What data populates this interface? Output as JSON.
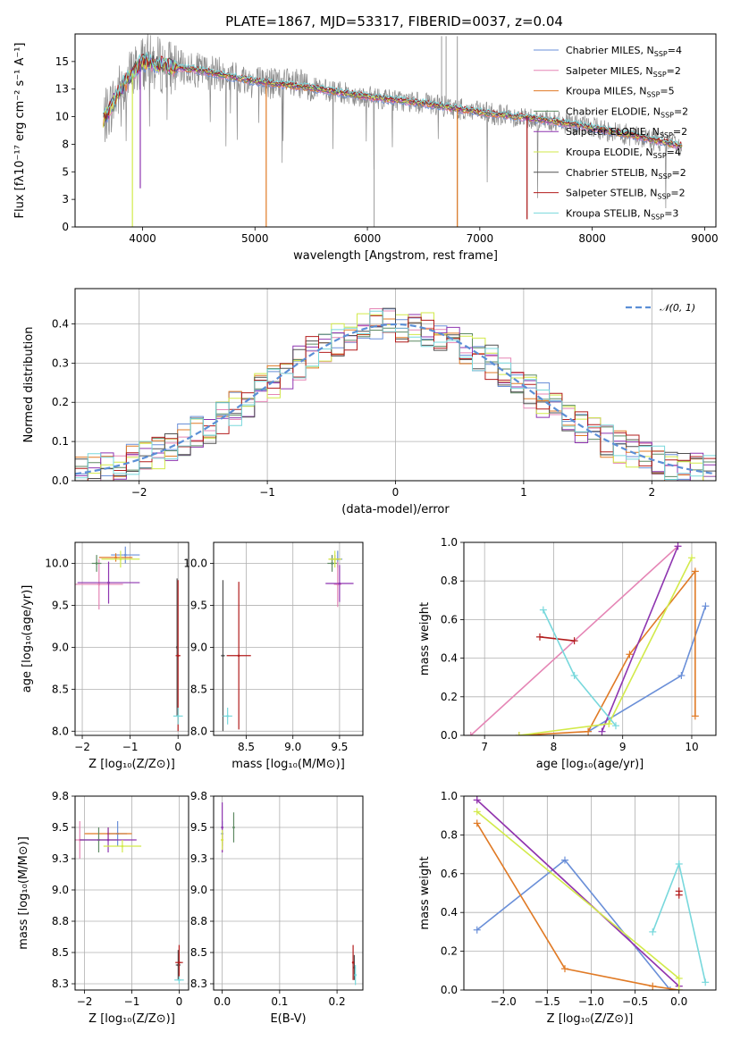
{
  "colors": {
    "Chabrier MILES": "#6a8fd8",
    "Salpeter MILES": "#e585b5",
    "Kroupa MILES": "#e07a25",
    "Chabrier ELODIE": "#5e8a63",
    "Salpeter ELODIE": "#8e35b0",
    "Kroupa ELODIE": "#d2ea4a",
    "Chabrier STELIB": "#505050",
    "Salpeter STELIB": "#b21c1c",
    "Kroupa STELIB": "#78d8dc"
  },
  "chart_data": [
    {
      "id": "spectrum",
      "type": "line",
      "title": "PLATE=1867, MJD=53317, FIBERID=0037, z=0.04",
      "xlabel": "wavelength [Angstrom, rest frame]",
      "ylabel": "Flux [fλ10⁻¹⁷ erg cm⁻² s⁻¹ A⁻¹]",
      "xlim": [
        3400,
        9100
      ],
      "ylim": [
        0,
        17.5
      ],
      "xticks": [
        4000,
        5000,
        6000,
        7000,
        8000,
        9000
      ],
      "yticks": [
        0.0,
        2.5,
        5.0,
        7.5,
        10.0,
        12.5,
        15.0
      ],
      "legend_position": "top-right",
      "legend": [
        {
          "model": "Chabrier MILES",
          "label": "Chabrier MILES, N",
          "sub": "SSP",
          "suffix": "=4"
        },
        {
          "model": "Salpeter MILES",
          "label": "Salpeter MILES, N",
          "sub": "SSP",
          "suffix": "=2"
        },
        {
          "model": "Kroupa MILES",
          "label": "Kroupa MILES, N",
          "sub": "SSP",
          "suffix": "=5"
        },
        {
          "model": "Chabrier ELODIE",
          "label": "Chabrier ELODIE, N",
          "sub": "SSP",
          "suffix": "=2"
        },
        {
          "model": "Salpeter ELODIE",
          "label": "Salpeter ELODIE, N",
          "sub": "SSP",
          "suffix": "=2"
        },
        {
          "model": "Kroupa ELODIE",
          "label": "Kroupa ELODIE, N",
          "sub": "SSP",
          "suffix": "=4"
        },
        {
          "model": "Chabrier STELIB",
          "label": "Chabrier STELIB, N",
          "sub": "SSP",
          "suffix": "=2"
        },
        {
          "model": "Salpeter STELIB",
          "label": "Salpeter STELIB, N",
          "sub": "SSP",
          "suffix": "=2"
        },
        {
          "model": "Kroupa STELIB",
          "label": "Kroupa STELIB, N",
          "sub": "SSP",
          "suffix": "=3"
        }
      ],
      "continuum": [
        [
          3650,
          9.6
        ],
        [
          3800,
          12.5
        ],
        [
          4000,
          15.0
        ],
        [
          4200,
          14.6
        ],
        [
          4500,
          14.2
        ],
        [
          5000,
          13.2
        ],
        [
          5500,
          12.6
        ],
        [
          6000,
          11.8
        ],
        [
          6500,
          11.2
        ],
        [
          7000,
          10.4
        ],
        [
          7500,
          9.8
        ],
        [
          8000,
          9.0
        ],
        [
          8500,
          8.0
        ],
        [
          8800,
          7.3
        ]
      ],
      "data_spikes": [
        [
          6060,
          0.0
        ],
        [
          6660,
          17.3
        ],
        [
          6700,
          17.3
        ],
        [
          6800,
          17.3
        ],
        [
          6800,
          0.0
        ],
        [
          7420,
          0.7
        ]
      ],
      "model_dips": [
        [
          3910,
          0.0,
          "Kroupa ELODIE"
        ],
        [
          3980,
          3.5,
          "Salpeter ELODIE"
        ],
        [
          5100,
          0.0,
          "Kroupa MILES"
        ],
        [
          6800,
          0.0,
          "Kroupa MILES"
        ],
        [
          7420,
          0.7,
          "Salpeter STELIB"
        ]
      ]
    },
    {
      "id": "residuals",
      "type": "step",
      "xlabel": "(data-model)/error",
      "ylabel": "Normed distribution",
      "xlim": [
        -2.5,
        2.5
      ],
      "ylim": [
        0,
        0.49
      ],
      "xticks": [
        -2,
        -1,
        0,
        1,
        2
      ],
      "yticks": [
        0.0,
        0.1,
        0.2,
        0.3,
        0.4
      ],
      "grid": true,
      "legend_position": "top-right",
      "reference_label": "𝒩(0, 1)",
      "bin_width": 0.1
    },
    {
      "id": "age-vs-z",
      "type": "errorbar",
      "xlabel": "Z [log₁₀(Z/Z⊙)]",
      "ylabel": "age  [log₁₀(age/yr)]",
      "xlim": [
        -2.15,
        0.22
      ],
      "ylim": [
        7.95,
        10.25
      ],
      "xticks": [
        -2,
        -1,
        0
      ],
      "yticks": [
        8.0,
        8.5,
        9.0,
        9.5,
        10.0
      ],
      "grid": true,
      "points": [
        {
          "model": "Chabrier MILES",
          "x": -1.1,
          "y": 10.1,
          "xerr": 0.3,
          "yerr": 0.1
        },
        {
          "model": "Salpeter MILES",
          "x": -1.65,
          "y": 9.75,
          "xerr": 0.5,
          "yerr": 0.3
        },
        {
          "model": "Kroupa MILES",
          "x": -1.3,
          "y": 10.07,
          "xerr": 0.35,
          "yerr": 0.05
        },
        {
          "model": "Chabrier ELODIE",
          "x": -1.7,
          "y": 10.0,
          "xerr": 0.1,
          "yerr": 0.1
        },
        {
          "model": "Salpeter ELODIE",
          "x": -1.45,
          "y": 9.77,
          "xerr": 0.65,
          "yerr": 0.25
        },
        {
          "model": "Kroupa ELODIE",
          "x": -1.2,
          "y": 10.05,
          "xerr": 0.4,
          "yerr": 0.1
        },
        {
          "model": "Chabrier STELIB",
          "x": -0.02,
          "y": 9.0,
          "xerr": 0.02,
          "yerr": 0.82
        },
        {
          "model": "Salpeter STELIB",
          "x": 0.0,
          "y": 8.9,
          "xerr": 0.05,
          "yerr": 0.9
        },
        {
          "model": "Kroupa STELIB",
          "x": 0.0,
          "y": 8.18,
          "xerr": 0.1,
          "yerr": 0.1
        }
      ]
    },
    {
      "id": "age-vs-mass",
      "type": "errorbar",
      "xlabel": "mass [log₁₀(M/M⊙)]",
      "xlim": [
        8.15,
        9.75
      ],
      "ylim": [
        7.95,
        10.25
      ],
      "xticks": [
        8.5,
        9.0,
        9.5
      ],
      "yticks": [
        8.0,
        8.5,
        9.0,
        9.5,
        10.0
      ],
      "grid": true,
      "points": [
        {
          "model": "Chabrier MILES",
          "x": 9.48,
          "y": 10.05,
          "xerr": 0.05,
          "yerr": 0.1
        },
        {
          "model": "Salpeter MILES",
          "x": 9.48,
          "y": 9.75,
          "xerr": 0.04,
          "yerr": 0.27
        },
        {
          "model": "Kroupa MILES",
          "x": 9.45,
          "y": 10.05,
          "xerr": 0.06,
          "yerr": 0.05
        },
        {
          "model": "Chabrier ELODIE",
          "x": 9.42,
          "y": 10.0,
          "xerr": 0.05,
          "yerr": 0.1
        },
        {
          "model": "Salpeter ELODIE",
          "x": 9.5,
          "y": 9.76,
          "xerr": 0.15,
          "yerr": 0.22
        },
        {
          "model": "Kroupa ELODIE",
          "x": 9.45,
          "y": 10.05,
          "xerr": 0.07,
          "yerr": 0.1
        },
        {
          "model": "Chabrier STELIB",
          "x": 8.25,
          "y": 8.9,
          "xerr": 0.02,
          "yerr": 0.9
        },
        {
          "model": "Salpeter STELIB",
          "x": 8.42,
          "y": 8.9,
          "xerr": 0.13,
          "yerr": 0.88
        },
        {
          "model": "Kroupa STELIB",
          "x": 8.3,
          "y": 8.18,
          "xerr": 0.05,
          "yerr": 0.1
        }
      ]
    },
    {
      "id": "weight-vs-age",
      "type": "line",
      "xlabel": "age  [log₁₀(age/yr)]",
      "ylabel": "mass weight",
      "xlim": [
        6.7,
        10.35
      ],
      "ylim": [
        0,
        1.0
      ],
      "xticks": [
        7,
        8,
        9,
        10
      ],
      "yticks": [
        0.0,
        0.2,
        0.4,
        0.6,
        0.8,
        1.0
      ],
      "grid": true,
      "series": [
        {
          "model": "Chabrier MILES",
          "x": [
            8.5,
            9.85,
            10.2
          ],
          "y": [
            0.02,
            0.31,
            0.67
          ]
        },
        {
          "model": "Salpeter MILES",
          "x": [
            6.8,
            9.8
          ],
          "y": [
            0.0,
            0.98
          ]
        },
        {
          "model": "Kroupa MILES",
          "x": [
            7.5,
            8.5,
            9.1,
            10.05,
            10.05
          ],
          "y": [
            0.0,
            0.02,
            0.42,
            0.85,
            0.1
          ]
        },
        {
          "model": "Salpeter ELODIE",
          "x": [
            8.7,
            9.8
          ],
          "y": [
            0.02,
            0.98
          ]
        },
        {
          "model": "Kroupa ELODIE",
          "x": [
            7.5,
            8.8,
            10.0
          ],
          "y": [
            0.0,
            0.06,
            0.92
          ]
        },
        {
          "model": "Salpeter STELIB",
          "x": [
            7.8,
            8.3
          ],
          "y": [
            0.51,
            0.49
          ]
        },
        {
          "model": "Kroupa STELIB",
          "x": [
            7.85,
            8.3,
            8.9
          ],
          "y": [
            0.65,
            0.31,
            0.05
          ]
        }
      ]
    },
    {
      "id": "mass-vs-z",
      "type": "errorbar",
      "xlabel": "Z [log₁₀(Z/Z⊙)]",
      "ylabel": "mass [log₁₀(M/M⊙)]",
      "xlim": [
        -2.2,
        0.2
      ],
      "ylim": [
        8.2,
        9.75
      ],
      "xticks": [
        -2,
        -1,
        0
      ],
      "yticks": [
        8.25,
        8.5,
        8.75,
        9.0,
        9.25,
        9.5,
        9.75
      ],
      "grid": true,
      "points": [
        {
          "model": "Chabrier MILES",
          "x": -1.3,
          "y": 9.45,
          "xerr": 0.2,
          "yerr": 0.1
        },
        {
          "model": "Salpeter MILES",
          "x": -2.1,
          "y": 9.4,
          "xerr": 0.1,
          "yerr": 0.15
        },
        {
          "model": "Kroupa MILES",
          "x": -1.5,
          "y": 9.45,
          "xerr": 0.5,
          "yerr": 0.05
        },
        {
          "model": "Chabrier ELODIE",
          "x": -1.7,
          "y": 9.4,
          "xerr": 0.4,
          "yerr": 0.1
        },
        {
          "model": "Salpeter ELODIE",
          "x": -1.5,
          "y": 9.4,
          "xerr": 0.6,
          "yerr": 0.1
        },
        {
          "model": "Kroupa ELODIE",
          "x": -1.2,
          "y": 9.35,
          "xerr": 0.4,
          "yerr": 0.05
        },
        {
          "model": "Chabrier STELIB",
          "x": -0.02,
          "y": 8.4,
          "xerr": 0.05,
          "yerr": 0.12
        },
        {
          "model": "Salpeter STELIB",
          "x": 0.0,
          "y": 8.42,
          "xerr": 0.08,
          "yerr": 0.14
        },
        {
          "model": "Kroupa STELIB",
          "x": 0.0,
          "y": 8.28,
          "xerr": 0.1,
          "yerr": 0.03
        }
      ]
    },
    {
      "id": "mass-vs-ebv",
      "type": "errorbar",
      "xlabel": "E(B-V)",
      "xlim": [
        -0.015,
        0.245
      ],
      "ylim": [
        8.2,
        9.75
      ],
      "xticks": [
        0.0,
        0.1,
        0.2
      ],
      "yticks": [
        8.25,
        8.5,
        8.75,
        9.0,
        9.25,
        9.5,
        9.75
      ],
      "grid": true,
      "points": [
        {
          "model": "Chabrier MILES",
          "x": 0.0,
          "y": 9.45,
          "xerr": 0,
          "yerr": 0.1
        },
        {
          "model": "Salpeter MILES",
          "x": 0.0,
          "y": 9.4,
          "xerr": 0,
          "yerr": 0.1
        },
        {
          "model": "Kroupa MILES",
          "x": 0.0,
          "y": 9.4,
          "xerr": 0,
          "yerr": 0.05
        },
        {
          "model": "Chabrier ELODIE",
          "x": 0.02,
          "y": 9.5,
          "xerr": 0,
          "yerr": 0.12
        },
        {
          "model": "Salpeter ELODIE",
          "x": 0.0,
          "y": 9.5,
          "xerr": 0,
          "yerr": 0.2
        },
        {
          "model": "Kroupa ELODIE",
          "x": 0.0,
          "y": 9.4,
          "xerr": 0,
          "yerr": 0.08
        },
        {
          "model": "Chabrier STELIB",
          "x": 0.23,
          "y": 8.38,
          "xerr": 0,
          "yerr": 0.1
        },
        {
          "model": "Salpeter STELIB",
          "x": 0.228,
          "y": 8.42,
          "xerr": 0,
          "yerr": 0.14
        },
        {
          "model": "Kroupa STELIB",
          "x": 0.232,
          "y": 8.32,
          "xerr": 0,
          "yerr": 0.08
        }
      ]
    },
    {
      "id": "weight-vs-z",
      "type": "line",
      "xlabel": "Z [log₁₀(Z/Z⊙)]",
      "ylabel": "mass weight",
      "xlim": [
        -2.45,
        0.42
      ],
      "ylim": [
        0,
        1.0
      ],
      "xticks": [
        -2.0,
        -1.5,
        -1.0,
        -0.5,
        0.0
      ],
      "yticks": [
        0.0,
        0.2,
        0.4,
        0.6,
        0.8,
        1.0
      ],
      "grid": true,
      "series": [
        {
          "model": "Chabrier MILES",
          "x": [
            -2.3,
            -1.3,
            -0.1
          ],
          "y": [
            0.31,
            0.67,
            0.0
          ]
        },
        {
          "model": "Salpeter MILES",
          "x": [
            -2.3,
            0.0
          ],
          "y": [
            0.98,
            0.02
          ]
        },
        {
          "model": "Kroupa MILES",
          "x": [
            -2.3,
            -1.3,
            -0.3,
            0.0
          ],
          "y": [
            0.86,
            0.11,
            0.02,
            0.0
          ]
        },
        {
          "model": "Salpeter ELODIE",
          "x": [
            -2.3,
            0.0
          ],
          "y": [
            0.98,
            0.02
          ]
        },
        {
          "model": "Kroupa ELODIE",
          "x": [
            -2.3,
            0.0,
            0.0
          ],
          "y": [
            0.92,
            0.06,
            0.0
          ]
        },
        {
          "model": "Salpeter STELIB",
          "x": [
            0.0,
            0.0
          ],
          "y": [
            0.49,
            0.51
          ]
        },
        {
          "model": "Kroupa STELIB",
          "x": [
            -0.3,
            0.0,
            0.3
          ],
          "y": [
            0.3,
            0.65,
            0.04
          ]
        }
      ]
    }
  ]
}
